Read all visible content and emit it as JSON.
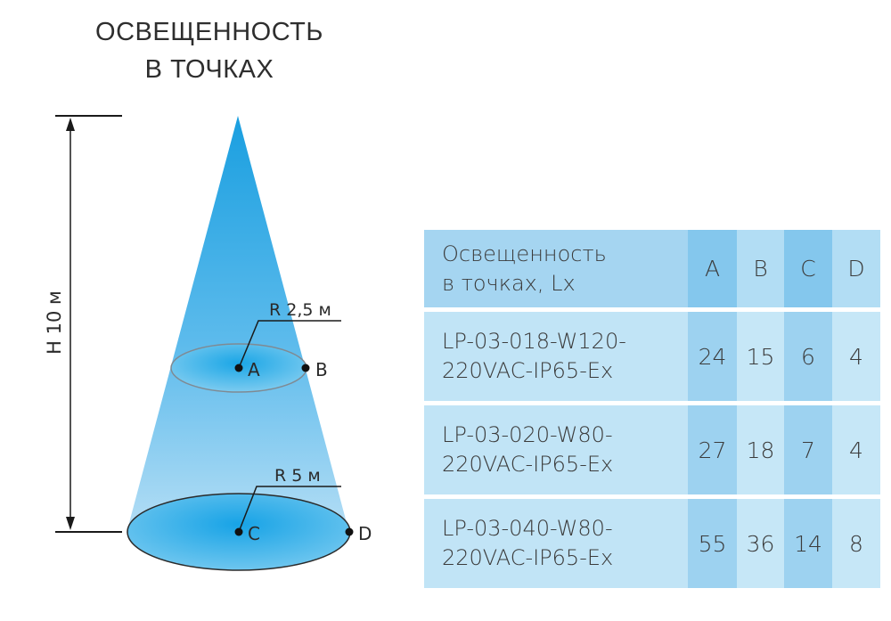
{
  "title": {
    "line1": "ОСВЕЩЕННОСТЬ",
    "line2": "В ТОЧКАХ"
  },
  "diagram": {
    "height_label": "H 10 м",
    "upper_radius_label": "R 2,5 м",
    "lower_radius_label": "R 5 м",
    "points": {
      "a": "A",
      "b": "B",
      "c": "C",
      "d": "D"
    },
    "colors": {
      "beam_top": "#1aa3e0",
      "beam_bottom": "#9fd4f2",
      "ellipse": "#2bb3ea"
    }
  },
  "table": {
    "header": {
      "name_line1": "Освещенность",
      "name_line2": "в точках, Lx",
      "cols": [
        "A",
        "B",
        "C",
        "D"
      ]
    },
    "rows": [
      {
        "name_line1": "LP-03-018-W120-",
        "name_line2": "220VAC-IP65-Ex",
        "values": [
          "24",
          "15",
          "6",
          "4"
        ]
      },
      {
        "name_line1": "LP-03-020-W80-",
        "name_line2": "220VAC-IP65-Ex",
        "values": [
          "27",
          "18",
          "7",
          "4"
        ]
      },
      {
        "name_line1": "LP-03-040-W80-",
        "name_line2": "220VAC-IP65-Ex",
        "values": [
          "55",
          "36",
          "14",
          "8"
        ]
      }
    ]
  }
}
